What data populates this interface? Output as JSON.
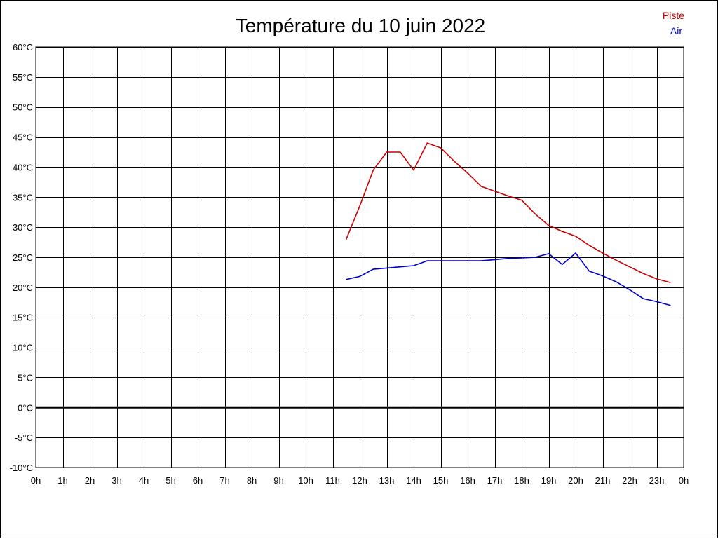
{
  "chart_data": {
    "type": "line",
    "title": "Température du 10 juin 2022",
    "xlim": [
      0,
      24
    ],
    "ylim": [
      -10,
      60
    ],
    "x_ticks": [
      0,
      1,
      2,
      3,
      4,
      5,
      6,
      7,
      8,
      9,
      10,
      11,
      12,
      13,
      14,
      15,
      16,
      17,
      18,
      19,
      20,
      21,
      22,
      23,
      24
    ],
    "x_tick_labels": [
      "0h",
      "1h",
      "2h",
      "3h",
      "4h",
      "5h",
      "6h",
      "7h",
      "8h",
      "9h",
      "10h",
      "11h",
      "12h",
      "13h",
      "14h",
      "15h",
      "16h",
      "17h",
      "18h",
      "19h",
      "20h",
      "21h",
      "22h",
      "23h",
      "0h"
    ],
    "y_ticks": [
      -10,
      -5,
      0,
      5,
      10,
      15,
      20,
      25,
      30,
      35,
      40,
      45,
      50,
      55,
      60
    ],
    "y_tick_labels": [
      "-10°C",
      "-5°C",
      "0°C",
      "5°C",
      "10°C",
      "15°C",
      "20°C",
      "25°C",
      "30°C",
      "35°C",
      "40°C",
      "45°C",
      "50°C",
      "55°C",
      "60°C"
    ],
    "grid": true,
    "legend_position": "top-right",
    "series": [
      {
        "name": "Piste",
        "color": "#cc0000",
        "x": [
          11.5,
          12.0,
          12.5,
          13.0,
          13.5,
          14.0,
          14.5,
          15.0,
          15.5,
          16.0,
          16.5,
          17.0,
          17.5,
          18.0,
          18.5,
          19.0,
          19.5,
          20.0,
          20.5,
          21.0,
          21.5,
          22.0,
          22.5,
          23.0,
          23.5
        ],
        "y": [
          28.0,
          33.5,
          39.5,
          42.5,
          42.5,
          39.5,
          44.0,
          43.2,
          41.0,
          39.0,
          36.8,
          36.0,
          35.2,
          34.5,
          32.2,
          30.3,
          29.3,
          28.5,
          27.0,
          25.7,
          24.5,
          23.4,
          22.3,
          21.4,
          20.8
        ]
      },
      {
        "name": "Air",
        "color": "#0000cc",
        "x": [
          11.5,
          12.0,
          12.5,
          13.0,
          13.5,
          14.0,
          14.5,
          15.0,
          15.5,
          16.0,
          16.5,
          17.0,
          17.5,
          18.0,
          18.5,
          19.0,
          19.5,
          20.0,
          20.5,
          21.0,
          21.5,
          22.0,
          22.5,
          23.0,
          23.5
        ],
        "y": [
          21.3,
          21.8,
          23.0,
          23.2,
          23.4,
          23.6,
          24.4,
          24.4,
          24.4,
          24.4,
          24.4,
          24.6,
          24.8,
          24.9,
          25.0,
          25.6,
          23.8,
          25.7,
          22.7,
          21.9,
          20.9,
          19.6,
          18.1,
          17.6,
          17.0
        ]
      }
    ]
  }
}
